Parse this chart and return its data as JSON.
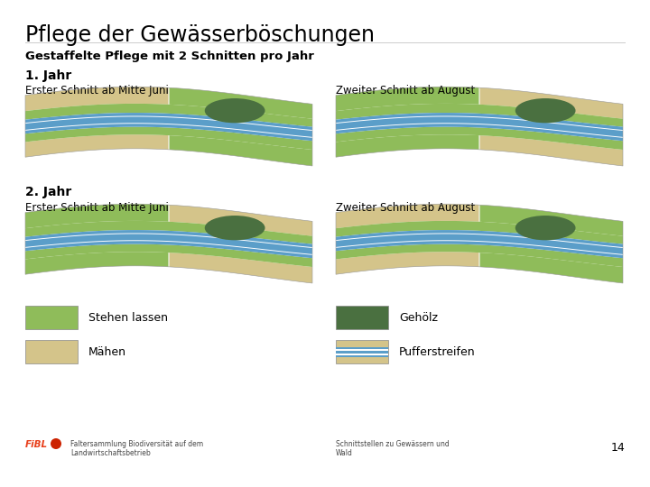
{
  "title": "Pflege der Gewässerböschungen",
  "subtitle": "Gestaffelte Pflege mit 2 Schnitten pro Jahr",
  "year1_label": "1. Jahr",
  "year2_label": "2. Jahr",
  "label_erster": "Erster Schnitt ab Mitte Juni",
  "label_zweiter": "Zweiter Schnitt ab August",
  "legend": {
    "stehen_lassen": "Stehen lassen",
    "maehen": "Mähen",
    "gehoelz": "Gehölz",
    "pufferstreifen": "Pufferstreifen"
  },
  "colors": {
    "light_green": "#8fbc5a",
    "dark_green": "#4a7040",
    "tan": "#d4c48a",
    "blue": "#5b9ec9",
    "background": "#ffffff",
    "text": "#000000",
    "fibl_color": "#e8401c"
  },
  "footer_left": "Faltersammlung Biodiversität auf dem\nLandwirtschaftsbetrieb",
  "footer_right": "Schnittstellen zu Gewässern und\nWald",
  "page_number": "14"
}
